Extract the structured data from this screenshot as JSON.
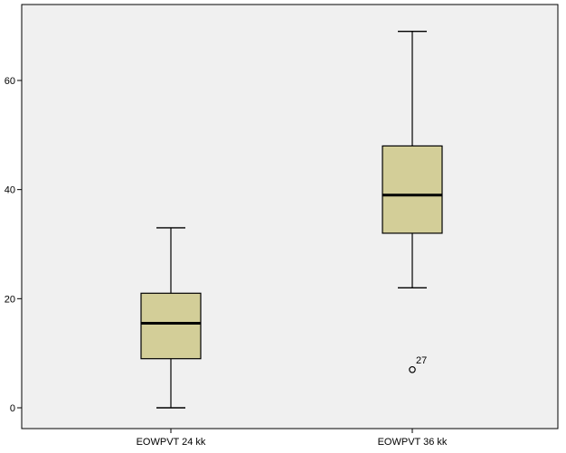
{
  "chart_data": {
    "type": "boxplot",
    "title": "",
    "xlabel": "",
    "ylabel": "",
    "ylim": [
      -3.5,
      72.5
    ],
    "yticks": [
      0,
      20,
      40,
      60
    ],
    "grid": false,
    "categories": [
      "EOWPVT 24 kk",
      "EOWPVT 36 kk"
    ],
    "boxes": [
      {
        "category": "EOWPVT 24 kk",
        "min": 0,
        "q1": 9,
        "median": 15.5,
        "q3": 21,
        "max": 33,
        "outliers": []
      },
      {
        "category": "EOWPVT 36 kk",
        "min": 22,
        "q1": 32,
        "median": 39,
        "q3": 48,
        "max": 69,
        "outliers": [
          {
            "value": 7,
            "label": "27"
          }
        ]
      }
    ],
    "colors": {
      "plot_background": "#f0f0f0",
      "box_fill": "#d3ce98",
      "stroke": "#000000"
    }
  }
}
